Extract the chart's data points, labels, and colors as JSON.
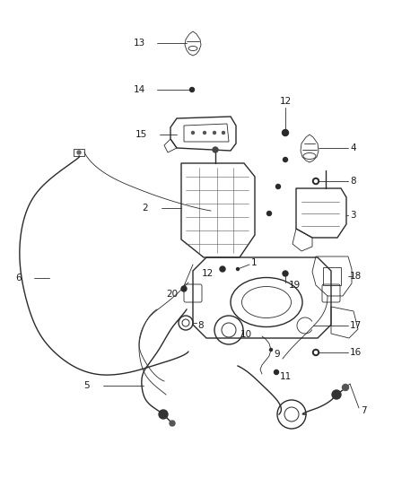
{
  "background_color": "#ffffff",
  "line_color": "#2a2a2a",
  "label_color": "#1a1a1a",
  "figsize": [
    4.38,
    5.33
  ],
  "dpi": 100
}
